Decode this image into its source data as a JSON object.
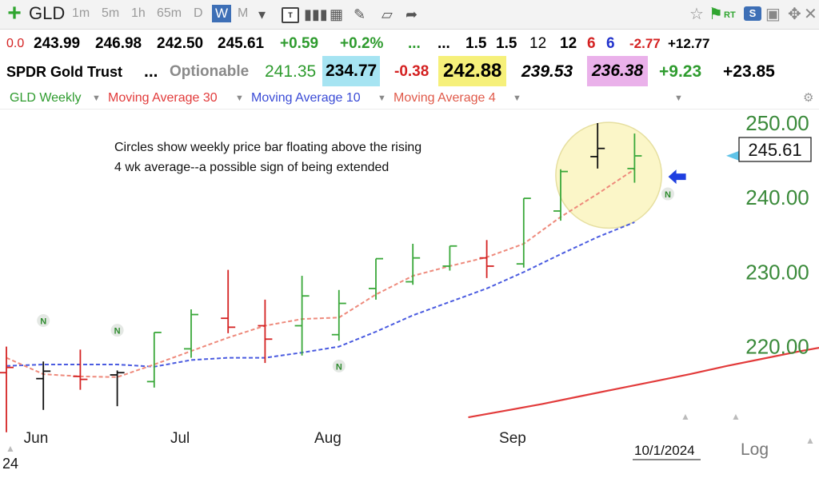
{
  "toolbar": {
    "symbol": "GLD",
    "timeframes": [
      "1m",
      "5m",
      "1h",
      "65m",
      "D",
      "W",
      "M"
    ],
    "active_timeframe": "W",
    "text_tool": "T",
    "rt_label": "RT",
    "s_label": "S"
  },
  "quote_row1": {
    "change_small": "0.0",
    "open": "243.99",
    "high": "246.98",
    "low": "242.50",
    "close": "245.61",
    "change": "+0.59",
    "change_pct": "+0.2%",
    "dots1": "...",
    "dots2": "...",
    "v1": "1.5",
    "v2": "1.5",
    "v3": "12",
    "v4": "12",
    "v5": "6",
    "v6": "6",
    "v7": "-2.77",
    "v8": "+12.77"
  },
  "quote_row2": {
    "name": "SPDR Gold Trust",
    "dots": "...",
    "optionable": "Optionable",
    "v1": "241.35",
    "v2": "234.77",
    "v3": "-0.38",
    "v4": "242.88",
    "v5": "239.53",
    "v6": "236.38",
    "v7": "+9.23",
    "v8": "+23.85"
  },
  "legend": {
    "series": "GLD Weekly",
    "ma30": "Moving Average 30",
    "ma10": "Moving Average 10",
    "ma4": "Moving Average 4"
  },
  "colors": {
    "up_bar": "#3aa83a",
    "down_bar": "#d42222",
    "neutral_bar": "#111111",
    "ma30": "#e23b3b",
    "ma10": "#4a5be0",
    "ma4": "#ee8a7c",
    "highlight": "#fbf6c8"
  },
  "chart_data": {
    "type": "ohlc",
    "title": "",
    "annotation_line1": "Circles show weekly price bar floating above the rising",
    "annotation_line2": "4 wk average--a possible sign of being extended",
    "ylim": [
      209,
      256
    ],
    "y_ticks": [
      "250.00",
      "240.00",
      "230.00",
      "220.00"
    ],
    "y_tick_values": [
      250,
      240,
      230,
      220
    ],
    "x_labels": [
      {
        "label": "Jun",
        "index": 0.8
      },
      {
        "label": "Jul",
        "index": 4.7
      },
      {
        "label": "Aug",
        "index": 8.7
      },
      {
        "label": "Sep",
        "index": 13.7
      }
    ],
    "last_price": "245.61",
    "last_price_value": 245.61,
    "date_label": "10/1/2024",
    "log_label": "Log",
    "year_fragment": "24",
    "bars": [
      {
        "o": 216.5,
        "h": 220.0,
        "l": 208.5,
        "c": 217.2,
        "color": "down"
      },
      {
        "o": 215.7,
        "h": 218.0,
        "l": 211.5,
        "c": 216.7,
        "color": "neutral"
      },
      {
        "o": 216.0,
        "h": 219.6,
        "l": 214.2,
        "c": 215.6,
        "color": "down"
      },
      {
        "o": 216.2,
        "h": 216.8,
        "l": 212.0,
        "c": 216.5,
        "color": "neutral"
      },
      {
        "o": 215.3,
        "h": 221.9,
        "l": 214.5,
        "c": 221.9,
        "color": "up"
      },
      {
        "o": 219.7,
        "h": 225.0,
        "l": 218.5,
        "c": 224.3,
        "color": "up"
      },
      {
        "o": 223.8,
        "h": 230.3,
        "l": 221.8,
        "c": 222.6,
        "color": "down"
      },
      {
        "o": 222.8,
        "h": 226.3,
        "l": 217.8,
        "c": 221.0,
        "color": "down"
      },
      {
        "o": 222.8,
        "h": 229.5,
        "l": 218.8,
        "c": 226.8,
        "color": "up"
      },
      {
        "o": 221.6,
        "h": 227.6,
        "l": 220.8,
        "c": 225.8,
        "color": "up"
      },
      {
        "o": 227.8,
        "h": 231.8,
        "l": 226.3,
        "c": 231.8,
        "color": "up"
      },
      {
        "o": 228.7,
        "h": 233.8,
        "l": 228.3,
        "c": 231.9,
        "color": "up"
      },
      {
        "o": 230.8,
        "h": 233.5,
        "l": 230.2,
        "c": 233.5,
        "color": "up"
      },
      {
        "o": 231.9,
        "h": 234.3,
        "l": 229.2,
        "c": 230.8,
        "color": "down"
      },
      {
        "o": 231.1,
        "h": 239.9,
        "l": 230.6,
        "c": 239.9,
        "color": "up"
      },
      {
        "o": 238.2,
        "h": 243.8,
        "l": 236.9,
        "c": 243.5,
        "color": "up"
      },
      {
        "o": 245.5,
        "h": 250.0,
        "l": 243.9,
        "c": 246.6,
        "color": "neutral"
      },
      {
        "o": 243.9,
        "h": 248.6,
        "l": 242.0,
        "c": 245.6,
        "color": "up"
      }
    ],
    "ma4": [
      218.5,
      216.3,
      216.0,
      215.9,
      217.6,
      219.4,
      221.2,
      222.8,
      223.7,
      223.9,
      227.0,
      229.5,
      230.8,
      232.0,
      233.8,
      237.4,
      240.5,
      243.8
    ],
    "ma10": [
      217.4,
      217.6,
      217.6,
      217.6,
      217.3,
      218.2,
      218.5,
      218.5,
      219.2,
      220.0,
      222.0,
      224.2,
      226.0,
      227.8,
      230.0,
      232.4,
      234.7,
      236.7
    ],
    "ma30": {
      "start_index": 12.5,
      "values": [
        210.5,
        211.4,
        212.3,
        213.3,
        214.3,
        215.3,
        216.3,
        217.4,
        218.4,
        219.4,
        220.3,
        221.1,
        222.0
      ]
    },
    "n_markers": [
      {
        "index": 1,
        "value": 223.5,
        "label": "N"
      },
      {
        "index": 3,
        "value": 222.2,
        "label": "N"
      },
      {
        "index": 9,
        "value": 217.4,
        "label": "N"
      },
      {
        "index": 17.9,
        "value": 240.5,
        "label": "N"
      }
    ],
    "highlight_circle": {
      "center_index": 16.3,
      "center_value": 243.0,
      "radius_value": 7.1
    },
    "arrow": {
      "index": 18.0,
      "value": 242.8
    }
  }
}
